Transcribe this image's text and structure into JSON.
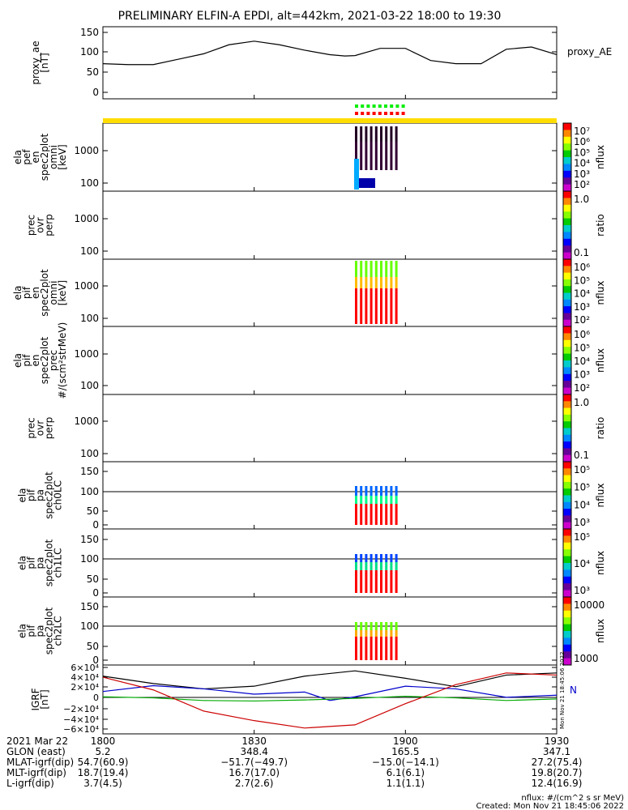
{
  "title": "PRELIMINARY ELFIN-A EPDI, alt=442km, 2021-03-22 18:00 to 19:30",
  "panels": [
    {
      "id": "proxy-ae",
      "ylabel": [
        "proxy_ae",
        "[nT]"
      ],
      "side_label": "proxy_AE",
      "yticks": [
        "150",
        "100",
        "50",
        "0"
      ]
    },
    {
      "id": "elf-en-omni",
      "ylabel": [
        "ela",
        "pef",
        "en",
        "spec2plot",
        "omni",
        "[keV]"
      ],
      "yticks": [
        "1000",
        "100"
      ],
      "cbar": {
        "ticks": [
          "10⁷",
          "10⁶",
          "10⁵",
          "10⁴",
          "10³",
          "10²"
        ],
        "label": "nflux"
      }
    },
    {
      "id": "elf-prec-ovr-perp",
      "ylabel": [
        "prec",
        "ovr",
        "perp"
      ],
      "yticks": [
        "1000",
        "100"
      ],
      "cbar": {
        "ticks": [
          "1.0",
          "0.1"
        ],
        "label": "ratio"
      }
    },
    {
      "id": "eli-en-omni",
      "ylabel": [
        "ela",
        "pif",
        "en",
        "spec2plot",
        "omni",
        "[keV]"
      ],
      "yticks": [
        "1000",
        "100"
      ],
      "cbar": {
        "ticks": [
          "10⁶",
          "10⁵",
          "10⁴",
          "10³",
          "10²"
        ],
        "label": "nflux"
      }
    },
    {
      "id": "eli-en-prec",
      "ylabel": [
        "ela",
        "pif",
        "en",
        "spec2plot",
        "prec",
        "#/(scm²strMeV)"
      ],
      "yticks": [
        "1000",
        "100"
      ],
      "cbar": {
        "ticks": [
          "10⁶",
          "10⁵",
          "10⁴",
          "10³",
          "10²"
        ],
        "label": "nflux"
      }
    },
    {
      "id": "eli-prec-ovr-perp",
      "ylabel": [
        "prec",
        "ovr",
        "perp"
      ],
      "yticks": [
        "1000",
        "100"
      ],
      "cbar": {
        "ticks": [
          "1.0",
          "0.1"
        ],
        "label": "ratio"
      }
    },
    {
      "id": "eli-pa-ch0",
      "ylabel": [
        "ela",
        "pif",
        "pa",
        "spec2plot",
        "ch0LC"
      ],
      "yticks": [
        "150",
        "100",
        "50",
        "0"
      ],
      "cbar": {
        "ticks": [
          "10⁵",
          "10⁵",
          "10⁴",
          "10³"
        ],
        "label": "nflux"
      }
    },
    {
      "id": "eli-pa-ch1",
      "ylabel": [
        "ela",
        "pif",
        "pa",
        "spec2plot",
        "ch1LC"
      ],
      "yticks": [
        "150",
        "100",
        "50",
        "0"
      ],
      "cbar": {
        "ticks": [
          "10⁵",
          "10⁴",
          "10³"
        ],
        "label": "nflux"
      }
    },
    {
      "id": "eli-pa-ch2",
      "ylabel": [
        "ela",
        "pif",
        "pa",
        "spec2plot",
        "ch2LC"
      ],
      "yticks": [
        "150",
        "100",
        "50",
        "0"
      ],
      "cbar": {
        "ticks": [
          "10000",
          "1000"
        ],
        "label": "nflux"
      }
    },
    {
      "id": "igrf",
      "ylabel": [
        "IGRF",
        "[nT]"
      ],
      "yticks": [
        "6×10⁴",
        "4×10⁴",
        "2×10⁴",
        "0",
        "−2×10⁴",
        "−4×10⁴",
        "−6×10⁴"
      ],
      "side_label": "N",
      "stamp": "Mon Nov 21 18:45:06 2022"
    }
  ],
  "footer": {
    "labels": [
      "2021 Mar 22",
      "GLON (east)",
      "MLAT-igrf(dip)",
      "MLT-igrf(dip)",
      "L-igrf(dip)"
    ],
    "columns": [
      {
        "time": "1800",
        "vals": [
          "5.2",
          "54.7(60.9)",
          "18.7(19.4)",
          "3.7(4.5)"
        ]
      },
      {
        "time": "1830",
        "vals": [
          "348.4",
          "−51.7(−49.7)",
          "16.7(17.0)",
          "2.7(2.6)"
        ]
      },
      {
        "time": "1900",
        "vals": [
          "165.5",
          "−15.0(−14.1)",
          "6.1(6.1)",
          "1.1(1.1)"
        ]
      },
      {
        "time": "1930",
        "vals": [
          "347.1",
          "27.2(75.4)",
          "19.8(20.7)",
          "12.4(16.9)"
        ]
      }
    ],
    "note1": "nflux: #/(cm^2 s sr MeV)",
    "note2": "Created: Mon Nov 21 18:45:06 2022"
  },
  "chart_data": {
    "type": "line",
    "x_range": [
      "18:00",
      "19:30"
    ],
    "xticks": [
      "1800",
      "1830",
      "1900",
      "1930"
    ],
    "series": [
      {
        "name": "proxy_AE",
        "panel": "proxy-ae",
        "ylim": [
          0,
          160
        ],
        "x_min": [
          0,
          5,
          10,
          15,
          20,
          25,
          30,
          35,
          40,
          45,
          48,
          50,
          55,
          60,
          65,
          70,
          75,
          80,
          85,
          90
        ],
        "y": [
          78,
          76,
          76,
          88,
          100,
          120,
          128,
          120,
          108,
          98,
          95,
          96,
          112,
          112,
          85,
          78,
          78,
          110,
          115,
          98
        ]
      },
      {
        "panel": "igrf",
        "color": "#000000",
        "ylim": [
          -65000,
          65000
        ],
        "x_min": [
          0,
          10,
          20,
          30,
          40,
          50,
          60,
          70,
          80,
          90
        ],
        "y": [
          44000,
          30000,
          20000,
          25000,
          44000,
          54000,
          40000,
          24000,
          46000,
          50000
        ]
      },
      {
        "panel": "igrf",
        "color": "#0000cc",
        "ylim": [
          -65000,
          65000
        ],
        "x_min": [
          0,
          10,
          20,
          30,
          40,
          45,
          50,
          60,
          70,
          80,
          90
        ],
        "y": [
          15000,
          26000,
          20000,
          10000,
          14000,
          -2000,
          5000,
          25000,
          20000,
          4000,
          8000
        ]
      },
      {
        "panel": "igrf",
        "color": "#00aa00",
        "ylim": [
          -65000,
          65000
        ],
        "x_min": [
          0,
          10,
          20,
          30,
          40,
          50,
          60,
          70,
          80,
          90
        ],
        "y": [
          5000,
          3000,
          -2000,
          -3000,
          -1000,
          2000,
          6000,
          3000,
          -2000,
          1000
        ]
      },
      {
        "panel": "igrf",
        "color": "#cc0000",
        "ylim": [
          -65000,
          65000
        ],
        "x_min": [
          0,
          10,
          20,
          30,
          40,
          50,
          60,
          70,
          80,
          90
        ],
        "y": [
          42000,
          18000,
          -22000,
          -40000,
          -54000,
          -48000,
          -8000,
          28000,
          50000,
          46000
        ]
      }
    ]
  }
}
